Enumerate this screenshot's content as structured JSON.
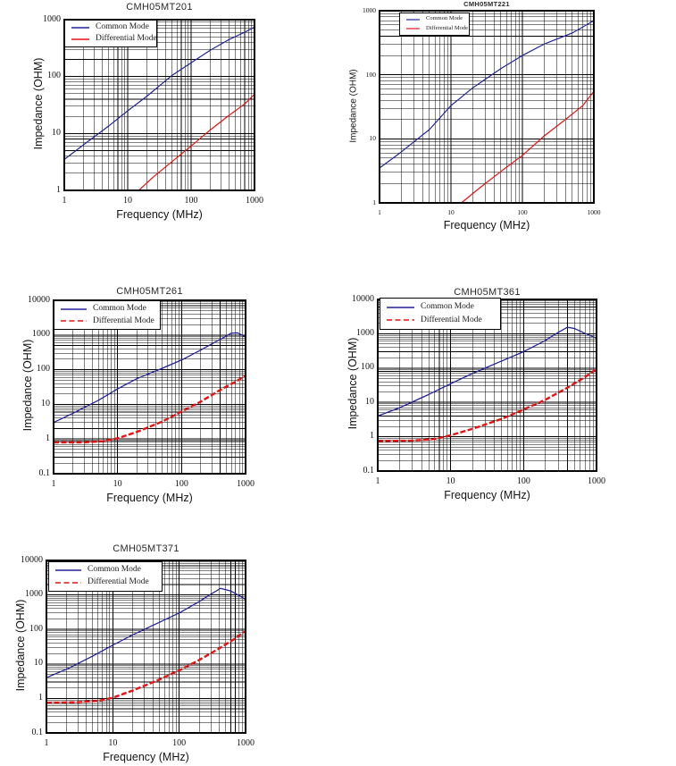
{
  "page": {
    "background": "#ffffff"
  },
  "chart_data": [
    {
      "type": "line",
      "title": "CMH05MT201",
      "xlabel": "Frequency (MHz)",
      "ylabel": "Impedance (OHM)",
      "xscale": "log",
      "yscale": "log",
      "xlim": [
        1,
        1000
      ],
      "ylim": [
        1,
        1000
      ],
      "xticks": [
        "1",
        "10",
        "100",
        "1000"
      ],
      "yticks": [
        "1000",
        "100",
        "10",
        "1"
      ],
      "grid": true,
      "legend": {
        "position": "top-left",
        "entries": [
          "Common Mode",
          "Differential Mode"
        ]
      },
      "series": [
        {
          "name": "Common Mode",
          "color": "#22229b",
          "dash": "solid",
          "points": [
            [
              1,
              3.5
            ],
            [
              2,
              6.3
            ],
            [
              5,
              13.5
            ],
            [
              10,
              25
            ],
            [
              20,
              45
            ],
            [
              50,
              105
            ],
            [
              100,
              175
            ],
            [
              200,
              290
            ],
            [
              400,
              450
            ],
            [
              700,
              600
            ],
            [
              1000,
              740
            ]
          ]
        },
        {
          "name": "Differential Mode",
          "color": "#e81010",
          "dash": "solid",
          "points": [
            [
              15,
              1
            ],
            [
              25,
              1.7
            ],
            [
              50,
              3.2
            ],
            [
              100,
              6
            ],
            [
              200,
              11.5
            ],
            [
              400,
              21
            ],
            [
              700,
              33
            ],
            [
              1000,
              49
            ]
          ]
        }
      ]
    },
    {
      "type": "line",
      "title": "CMH05MT221",
      "xlabel": "Frequency (MHz)",
      "ylabel": "Impedance (OHM)",
      "xscale": "log",
      "yscale": "log",
      "xlim": [
        1,
        1000
      ],
      "ylim": [
        1,
        1000
      ],
      "xticks": [
        "1",
        "10",
        "100",
        "1000"
      ],
      "yticks": [
        "1000",
        "100",
        "10",
        "1"
      ],
      "grid": true,
      "legend": {
        "position": "top-left",
        "entries": [
          "Common Mode",
          "Differential Mode"
        ]
      },
      "series": [
        {
          "name": "Common Mode",
          "color": "#22229b",
          "dash": "solid",
          "points": [
            [
              1,
              3.5
            ],
            [
              2,
              6.2
            ],
            [
              5,
              14
            ],
            [
              10,
              33
            ],
            [
              20,
              62
            ],
            [
              50,
              125
            ],
            [
              100,
              200
            ],
            [
              200,
              300
            ],
            [
              500,
              450
            ],
            [
              1000,
              700
            ]
          ]
        },
        {
          "name": "Differential Mode",
          "color": "#e81010",
          "dash": "solid",
          "points": [
            [
              14,
              1
            ],
            [
              25,
              1.7
            ],
            [
              50,
              3.1
            ],
            [
              100,
              5.5
            ],
            [
              200,
              11
            ],
            [
              400,
              20
            ],
            [
              700,
              33
            ],
            [
              1000,
              55
            ]
          ]
        }
      ]
    },
    {
      "type": "line",
      "title": "CMH05MT261",
      "xlabel": "Frequency (MHz)",
      "ylabel": "Impedance (OHM)",
      "xscale": "log",
      "yscale": "log",
      "xlim": [
        1,
        1000
      ],
      "ylim": [
        0.1,
        10000
      ],
      "xticks": [
        "1",
        "10",
        "100",
        "1000"
      ],
      "yticks": [
        "10000",
        "1000",
        "100",
        "10",
        "1",
        "0.1"
      ],
      "grid": true,
      "legend": {
        "position": "top-left",
        "entries": [
          "Common Mode",
          "Differential Mode"
        ]
      },
      "series": [
        {
          "name": "Common Mode",
          "color": "#22229b",
          "dash": "solid",
          "points": [
            [
              1,
              3
            ],
            [
              2,
              5.5
            ],
            [
              5,
              13
            ],
            [
              10,
              28
            ],
            [
              20,
              55
            ],
            [
              50,
              110
            ],
            [
              100,
              190
            ],
            [
              200,
              370
            ],
            [
              400,
              750
            ],
            [
              600,
              1130
            ],
            [
              750,
              1150
            ],
            [
              850,
              1030
            ],
            [
              1000,
              870
            ]
          ]
        },
        {
          "name": "Differential Mode",
          "color": "#e81010",
          "dash": "dashed",
          "points": [
            [
              1,
              0.8
            ],
            [
              3,
              0.8
            ],
            [
              6,
              0.87
            ],
            [
              10,
              1.05
            ],
            [
              20,
              1.6
            ],
            [
              50,
              3.2
            ],
            [
              100,
              6.2
            ],
            [
              200,
              12
            ],
            [
              400,
              26
            ],
            [
              700,
              45
            ],
            [
              1000,
              68
            ]
          ]
        }
      ]
    },
    {
      "type": "line",
      "title": "CMH05MT361",
      "xlabel": "Frequency (MHz)",
      "ylabel": "Impedance (OHM)",
      "xscale": "log",
      "yscale": "log",
      "xlim": [
        1,
        1000
      ],
      "ylim": [
        0.1,
        10000
      ],
      "xticks": [
        "1",
        "10",
        "100",
        "1000"
      ],
      "yticks": [
        "10000",
        "1000",
        "100",
        "10",
        "1",
        "0.1"
      ],
      "grid": true,
      "legend": {
        "position": "top-left",
        "entries": [
          "Common Mode",
          "Differential Mode"
        ]
      },
      "series": [
        {
          "name": "Common Mode",
          "color": "#22229b",
          "dash": "solid",
          "points": [
            [
              1,
              4
            ],
            [
              2,
              7
            ],
            [
              5,
              17
            ],
            [
              10,
              35
            ],
            [
              20,
              70
            ],
            [
              50,
              160
            ],
            [
              100,
              300
            ],
            [
              200,
              640
            ],
            [
              300,
              1100
            ],
            [
              400,
              1550
            ],
            [
              500,
              1420
            ],
            [
              700,
              1020
            ],
            [
              1000,
              740
            ]
          ]
        },
        {
          "name": "Differential Mode",
          "color": "#e81010",
          "dash": "dashed",
          "points": [
            [
              1,
              0.75
            ],
            [
              3,
              0.77
            ],
            [
              6,
              0.85
            ],
            [
              10,
              1.1
            ],
            [
              20,
              1.7
            ],
            [
              50,
              3.3
            ],
            [
              100,
              6.2
            ],
            [
              200,
              12
            ],
            [
              400,
              27
            ],
            [
              700,
              55
            ],
            [
              1000,
              95
            ]
          ]
        }
      ]
    },
    {
      "type": "line",
      "title": "CMH05MT371",
      "xlabel": "Frequency (MHz)",
      "ylabel": "Impedance (OHM)",
      "xscale": "log",
      "yscale": "log",
      "xlim": [
        1,
        1000
      ],
      "ylim": [
        0.1,
        10000
      ],
      "xticks": [
        "1",
        "10",
        "100",
        "1000"
      ],
      "yticks": [
        "10000",
        "1000",
        "100",
        "10",
        "1",
        "0.1"
      ],
      "grid": true,
      "legend": {
        "position": "top-left",
        "entries": [
          "Common Mode",
          "Differential Mode"
        ]
      },
      "series": [
        {
          "name": "Common Mode",
          "color": "#22229b",
          "dash": "solid",
          "points": [
            [
              1,
              4
            ],
            [
              2,
              7
            ],
            [
              5,
              17
            ],
            [
              10,
              35
            ],
            [
              20,
              70
            ],
            [
              50,
              160
            ],
            [
              100,
              300
            ],
            [
              200,
              640
            ],
            [
              300,
              1050
            ],
            [
              420,
              1550
            ],
            [
              600,
              1300
            ],
            [
              800,
              950
            ],
            [
              1000,
              740
            ]
          ]
        },
        {
          "name": "Differential Mode",
          "color": "#e81010",
          "dash": "dashed",
          "points": [
            [
              1,
              0.75
            ],
            [
              3,
              0.78
            ],
            [
              6,
              0.85
            ],
            [
              10,
              1.05
            ],
            [
              20,
              1.7
            ],
            [
              50,
              3.5
            ],
            [
              100,
              6.5
            ],
            [
              200,
              13
            ],
            [
              400,
              28
            ],
            [
              700,
              55
            ],
            [
              1000,
              90
            ]
          ]
        }
      ]
    }
  ]
}
